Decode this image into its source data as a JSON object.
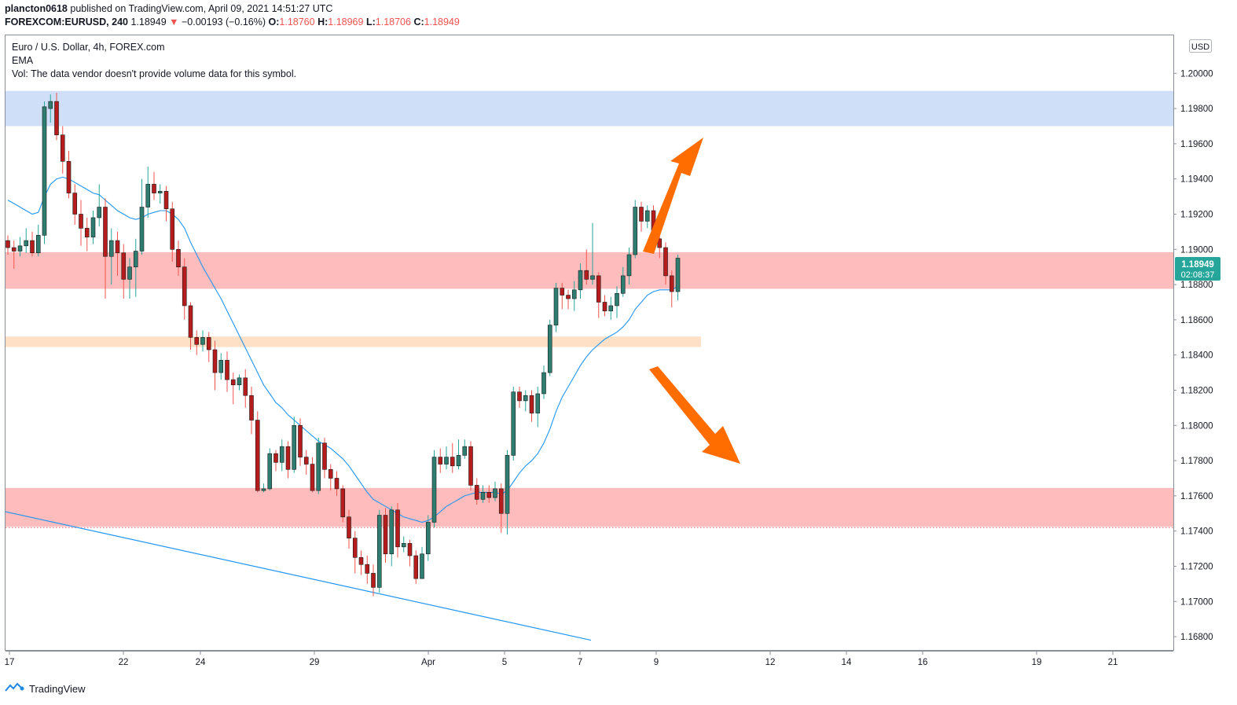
{
  "header": {
    "author": "plancton0618",
    "published_text": "published on TradingView.com, April 09, 2021 14:51:27 UTC",
    "symbol": "FOREXCOM:EURUSD, 240",
    "last": "1.18949",
    "change_arrow": "▼",
    "change": "−0.00193 (−0.16%)",
    "o_label": "O:",
    "o": "1.18760",
    "h_label": "H:",
    "h": "1.18969",
    "l_label": "L:",
    "l": "1.18706",
    "c_label": "C:",
    "c": "1.18949"
  },
  "legend": {
    "title": "Euro / U.S. Dollar, 4h, FOREX.com",
    "ema": "EMA",
    "vol": "Vol: The data vendor doesn't provide volume data for this symbol."
  },
  "footer": {
    "brand": "TradingView",
    "logo_icon": "tradingview-logo-icon"
  },
  "chart_data": {
    "type": "candlestick",
    "currency_label": "USD",
    "price_badge": "1.18949",
    "countdown": "02:08:37",
    "y_ticks": [
      "1.20000",
      "1.19800",
      "1.19600",
      "1.19400",
      "1.19200",
      "1.19000",
      "1.18800",
      "1.18600",
      "1.18400",
      "1.18200",
      "1.18000",
      "1.17800",
      "1.17600",
      "1.17400",
      "1.17200",
      "1.17000",
      "1.16800"
    ],
    "ylim": [
      1.1672,
      1.2022
    ],
    "x_ticks": [
      "17",
      "22",
      "24",
      "29",
      "Apr",
      "5",
      "7",
      "9",
      "12",
      "14",
      "16",
      "19",
      "21"
    ],
    "colors": {
      "up": "#26a69a",
      "down": "#ef5350",
      "body_up": "#2e7d71",
      "body_down": "#b71c1c",
      "ema": "#2196f3",
      "trendline": "#2196f3",
      "arrow": "#ff6d00",
      "supply_zone": "#cfdff7",
      "resistance_zone": "#ffbcbc",
      "level_zone": "#fde0c6"
    },
    "zones": [
      {
        "name": "upper-zone",
        "color": "#cfdff7",
        "from": 1.197,
        "to": 1.199
      },
      {
        "name": "mid-zone",
        "color": "#ffbcbc",
        "from": 1.18776,
        "to": 1.18984
      },
      {
        "name": "thin-zone",
        "color": "#fde0c6",
        "from": 1.18445,
        "to": 1.18505
      },
      {
        "name": "lower-zone",
        "color": "#ffbcbc",
        "from": 1.17425,
        "to": 1.17645
      }
    ],
    "dotted_level": 1.1742,
    "candles": [
      [
        "1.1905",
        "1.1901",
        "1.1908",
        "1.1897"
      ],
      [
        "1.1901",
        "1.1899",
        "1.1905",
        "1.1889"
      ],
      [
        "1.1899",
        "1.1902",
        "1.1907",
        "1.1896"
      ],
      [
        "1.1902",
        "1.1905",
        "1.1912",
        "1.1898"
      ],
      [
        "1.1905",
        "1.1898",
        "1.1910",
        "1.1896"
      ],
      [
        "1.1898",
        "1.1908",
        "1.1914",
        "1.1896"
      ],
      [
        "1.1908",
        "1.1981",
        "1.1984",
        "1.1903"
      ],
      [
        "1.1980",
        "1.1984",
        "1.1988",
        "1.1972"
      ],
      [
        "1.1984",
        "1.1965",
        "1.1989",
        "1.1962"
      ],
      [
        "1.1965",
        "1.1950",
        "1.1970",
        "1.1943"
      ],
      [
        "1.1950",
        "1.1932",
        "1.1956",
        "1.1929"
      ],
      [
        "1.1932",
        "1.1920",
        "1.1937",
        "1.1914"
      ],
      [
        "1.1920",
        "1.1912",
        "1.1928",
        "1.1902"
      ],
      [
        "1.1912",
        "1.1907",
        "1.1918",
        "1.1899"
      ],
      [
        "1.1907",
        "1.1918",
        "1.1922",
        "1.1903"
      ],
      [
        "1.1918",
        "1.1924",
        "1.1937",
        "1.1913"
      ],
      [
        "1.1924",
        "1.1896",
        "1.1929",
        "1.1872"
      ],
      [
        "1.1896",
        "1.1905",
        "1.1912",
        "1.1880"
      ],
      [
        "1.1905",
        "1.1898",
        "1.1910",
        "1.1885"
      ],
      [
        "1.1898",
        "1.1883",
        "1.1903",
        "1.1872"
      ],
      [
        "1.1883",
        "1.1890",
        "1.1895",
        "1.1872"
      ],
      [
        "1.1890",
        "1.1899",
        "1.1906",
        "1.1873"
      ],
      [
        "1.1899",
        "1.1924",
        "1.1940",
        "1.1897"
      ],
      [
        "1.1924",
        "1.1937",
        "1.1947",
        "1.1918"
      ],
      [
        "1.1937",
        "1.1932",
        "1.1944",
        "1.1928"
      ],
      [
        "1.1932",
        "1.1933",
        "1.1937",
        "1.1926"
      ],
      [
        "1.1933",
        "1.1923",
        "1.1936",
        "1.1916"
      ],
      [
        "1.1923",
        "1.1900",
        "1.1927",
        "1.1893"
      ],
      [
        "1.1900",
        "1.1890",
        "1.1905",
        "1.1885"
      ],
      [
        "1.1890",
        "1.1868",
        "1.1895",
        "1.1860"
      ],
      [
        "1.1868",
        "1.1850",
        "1.1870",
        "1.1843"
      ],
      [
        "1.1850",
        "1.1846",
        "1.1854",
        "1.1840"
      ],
      [
        "1.1846",
        "1.1850",
        "1.1854",
        "1.1842"
      ],
      [
        "1.1850",
        "1.1843",
        "1.1853",
        "1.1836"
      ],
      [
        "1.1843",
        "1.1830",
        "1.1848",
        "1.1820"
      ],
      [
        "1.1830",
        "1.1837",
        "1.1841",
        "1.1826"
      ],
      [
        "1.1837",
        "1.1826",
        "1.1842",
        "1.1819"
      ],
      [
        "1.1826",
        "1.1823",
        "1.1830",
        "1.1812"
      ],
      [
        "1.1823",
        "1.1827",
        "1.1829",
        "1.1820"
      ],
      [
        "1.1827",
        "1.1817",
        "1.1832",
        "1.1810"
      ],
      [
        "1.1817",
        "1.1803",
        "1.1822",
        "1.1795"
      ],
      [
        "1.1803",
        "1.1763",
        "1.1808",
        "1.1762"
      ],
      [
        "1.1763",
        "1.1764",
        "1.1767",
        "1.1762"
      ],
      [
        "1.1764",
        "1.1784",
        "1.1787",
        "1.1763"
      ],
      [
        "1.1784",
        "1.1779",
        "1.1786",
        "1.1774"
      ],
      [
        "1.1779",
        "1.1788",
        "1.1792",
        "1.1774"
      ],
      [
        "1.1788",
        "1.1775",
        "1.1791",
        "1.1770"
      ],
      [
        "1.1775",
        "1.1800",
        "1.1805",
        "1.1773"
      ],
      [
        "1.1800",
        "1.1782",
        "1.1804",
        "1.1777"
      ],
      [
        "1.1782",
        "1.1778",
        "1.1786",
        "1.1772"
      ],
      [
        "1.1778",
        "1.1763",
        "1.1782",
        "1.1762"
      ],
      [
        "1.1763",
        "1.1790",
        "1.1793",
        "1.1761"
      ],
      [
        "1.1790",
        "1.1775",
        "1.1793",
        "1.1770"
      ],
      [
        "1.1775",
        "1.1770",
        "1.1778",
        "1.1763"
      ],
      [
        "1.1770",
        "1.1764",
        "1.1774",
        "1.1760"
      ],
      [
        "1.1764",
        "1.1748",
        "1.1766",
        "1.1745"
      ],
      [
        "1.1748",
        "1.1736",
        "1.1752",
        "1.1730"
      ],
      [
        "1.1736",
        "1.1725",
        "1.1740",
        "1.1716"
      ],
      [
        "1.1725",
        "1.1721",
        "1.1729",
        "1.1715"
      ],
      [
        "1.1721",
        "1.1716",
        "1.1726",
        "1.1710"
      ],
      [
        "1.1716",
        "1.1708",
        "1.1721",
        "1.1703"
      ],
      [
        "1.1708",
        "1.1749",
        "1.1752",
        "1.1705"
      ],
      [
        "1.1749",
        "1.1727",
        "1.1753",
        "1.1722"
      ],
      [
        "1.1727",
        "1.1752",
        "1.1754",
        "1.1720"
      ],
      [
        "1.1752",
        "1.1731",
        "1.1756",
        "1.1725"
      ],
      [
        "1.1731",
        "1.1733",
        "1.1737",
        "1.1728"
      ],
      [
        "1.1733",
        "1.1726",
        "1.1735",
        "1.1720"
      ],
      [
        "1.1726",
        "1.1713",
        "1.1729",
        "1.1710"
      ],
      [
        "1.1713",
        "1.1727",
        "1.1731",
        "1.1713"
      ],
      [
        "1.1727",
        "1.1745",
        "1.1749",
        "1.1723"
      ],
      [
        "1.1745",
        "1.1782",
        "1.1786",
        "1.1742"
      ],
      [
        "1.1782",
        "1.1778",
        "1.1787",
        "1.1773"
      ],
      [
        "1.1778",
        "1.1782",
        "1.1788",
        "1.1775"
      ],
      [
        "1.1782",
        "1.1777",
        "1.1790",
        "1.1773"
      ],
      [
        "1.1777",
        "1.1783",
        "1.1792",
        "1.1775"
      ],
      [
        "1.1783",
        "1.1788",
        "1.1792",
        "1.1781"
      ],
      [
        "1.1788",
        "1.1766",
        "1.1791",
        "1.1763"
      ],
      [
        "1.1766",
        "1.1758",
        "1.1770",
        "1.1755"
      ],
      [
        "1.1758",
        "1.1762",
        "1.1766",
        "1.1756"
      ],
      [
        "1.1762",
        "1.1759",
        "1.1766",
        "1.1756"
      ],
      [
        "1.1759",
        "1.1764",
        "1.1768",
        "1.1757"
      ],
      [
        "1.1764",
        "1.1750",
        "1.1767",
        "1.1739"
      ],
      [
        "1.1750",
        "1.1783",
        "1.1786",
        "1.1738"
      ],
      [
        "1.1783",
        "1.1819",
        "1.1822",
        "1.1780"
      ],
      [
        "1.1819",
        "1.1814",
        "1.1822",
        "1.1810"
      ],
      [
        "1.1814",
        "1.1817",
        "1.1820",
        "1.1808"
      ],
      [
        "1.1817",
        "1.1807",
        "1.1820",
        "1.1802"
      ],
      [
        "1.1807",
        "1.1818",
        "1.1822",
        "1.1799"
      ],
      [
        "1.1818",
        "1.1830",
        "1.1834",
        "1.1815"
      ],
      [
        "1.1830",
        "1.1857",
        "1.1860",
        "1.1828"
      ],
      [
        "1.1857",
        "1.1878",
        "1.1881",
        "1.1853"
      ],
      [
        "1.1878",
        "1.1874",
        "1.1881",
        "1.1866"
      ],
      [
        "1.1874",
        "1.1872",
        "1.1877",
        "1.1866"
      ],
      [
        "1.1872",
        "1.1877",
        "1.1882",
        "1.1865"
      ],
      [
        "1.1877",
        "1.1888",
        "1.1892",
        "1.1872"
      ],
      [
        "1.1888",
        "1.1883",
        "1.1900",
        "1.1880"
      ],
      [
        "1.1883",
        "1.1885",
        "1.1915",
        "1.1880"
      ],
      [
        "1.1885",
        "1.1870",
        "1.1887",
        "1.1861"
      ],
      [
        "1.1870",
        "1.1865",
        "1.1874",
        "1.1862"
      ],
      [
        "1.1865",
        "1.1868",
        "1.1873",
        "1.1860"
      ],
      [
        "1.1868",
        "1.1875",
        "1.1879",
        "1.1861"
      ],
      [
        "1.1875",
        "1.1885",
        "1.1890",
        "1.1873"
      ],
      [
        "1.1885",
        "1.1897",
        "1.1901",
        "1.1880"
      ],
      [
        "1.1897",
        "1.1924",
        "1.1928",
        "1.1895"
      ],
      [
        "1.1924",
        "1.1916",
        "1.1927",
        "1.1910"
      ],
      [
        "1.1916",
        "1.1922",
        "1.1925",
        "1.1912"
      ],
      [
        "1.1922",
        "1.1906",
        "1.1925",
        "1.1902"
      ],
      [
        "1.1906",
        "1.1901",
        "1.1909",
        "1.1895"
      ],
      [
        "1.1901",
        "1.1885",
        "1.1904",
        "1.1880"
      ],
      [
        "1.1885",
        "1.1876",
        "1.1888",
        "1.1867"
      ],
      [
        "1.1876",
        "1.1895",
        "1.1897",
        "1.1871"
      ]
    ],
    "ema_values": [
      1.1928,
      1.1926,
      1.1924,
      1.1922,
      1.192,
      1.1921,
      1.193,
      1.1937,
      1.194,
      1.1941,
      1.194,
      1.1938,
      1.1936,
      1.1934,
      1.1932,
      1.1931,
      1.1928,
      1.1925,
      1.1922,
      1.192,
      1.1918,
      1.1917,
      1.1918,
      1.192,
      1.1921,
      1.1922,
      1.1922,
      1.192,
      1.1917,
      1.1912,
      1.1904,
      1.1897,
      1.189,
      1.1884,
      1.1878,
      1.1872,
      1.1865,
      1.1858,
      1.1851,
      1.1844,
      1.1837,
      1.183,
      1.1823,
      1.1818,
      1.1813,
      1.181,
      1.1806,
      1.1803,
      1.18,
      1.1797,
      1.1794,
      1.1791,
      1.1789,
      1.1787,
      1.1784,
      1.1781,
      1.1777,
      1.1772,
      1.1767,
      1.1762,
      1.1758,
      1.1756,
      1.1754,
      1.1752,
      1.175,
      1.1748,
      1.1747,
      1.1746,
      1.1745,
      1.1746,
      1.1748,
      1.1751,
      1.1754,
      1.1756,
      1.1758,
      1.176,
      1.1761,
      1.1762,
      1.1762,
      1.1762,
      1.1762,
      1.1761,
      1.1763,
      1.1768,
      1.1773,
      1.1777,
      1.178,
      1.1784,
      1.179,
      1.1798,
      1.1808,
      1.1816,
      1.1822,
      1.1828,
      1.1834,
      1.1839,
      1.1843,
      1.1846,
      1.1849,
      1.1851,
      1.1853,
      1.1856,
      1.186,
      1.1866,
      1.187,
      1.1874,
      1.1876,
      1.1877,
      1.1877,
      1.1877,
      1.1879
    ],
    "trendline": {
      "from": [
        "17",
        1.1751
      ],
      "to": [
        "Apr 8",
        1.1678
      ]
    }
  }
}
